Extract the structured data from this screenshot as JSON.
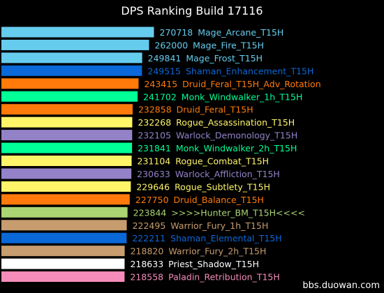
{
  "chart_data": {
    "type": "bar",
    "orientation": "horizontal",
    "title": "DPS Ranking Build 17116",
    "xlim": [
      0,
      270718
    ],
    "bars": [
      {
        "value": 270718,
        "value_label": "270718",
        "name": "Mage_Arcane_T15H",
        "color": "#66ccee",
        "text_color": "#66ccee"
      },
      {
        "value": 262000,
        "value_label": "262000",
        "name": "Mage_Fire_T15H",
        "color": "#66ccee",
        "text_color": "#66ccee"
      },
      {
        "value": 249841,
        "value_label": "249841",
        "name": "Mage_Frost_T15H",
        "color": "#66ccee",
        "text_color": "#66ccee"
      },
      {
        "value": 249515,
        "value_label": "249515",
        "name": "Shaman_Enhancement_T15H",
        "color": "#0a68d8",
        "text_color": "#0a68d8"
      },
      {
        "value": 243415,
        "value_label": "243415",
        "name": "Druid_Feral_T15H_Adv_Rotation",
        "color": "#ff7a0a",
        "text_color": "#ff7a0a"
      },
      {
        "value": 241702,
        "value_label": "241702",
        "name": "Monk_Windwalker_1h_T15H",
        "color": "#00ff96",
        "text_color": "#00ff96"
      },
      {
        "value": 232858,
        "value_label": "232858",
        "name": "Druid_Feral_T15H",
        "color": "#ff7a0a",
        "text_color": "#ff7a0a"
      },
      {
        "value": 232268,
        "value_label": "232268",
        "name": "Rogue_Assassination_T15H",
        "color": "#fff569",
        "text_color": "#fff569"
      },
      {
        "value": 232105,
        "value_label": "232105",
        "name": "Warlock_Demonology_T15H",
        "color": "#9482c9",
        "text_color": "#9482c9"
      },
      {
        "value": 231841,
        "value_label": "231841",
        "name": "Monk_Windwalker_2h_T15H",
        "color": "#00ff96",
        "text_color": "#00ff96"
      },
      {
        "value": 231104,
        "value_label": "231104",
        "name": "Rogue_Combat_T15H",
        "color": "#fff569",
        "text_color": "#fff569"
      },
      {
        "value": 230633,
        "value_label": "230633",
        "name": "Warlock_Affliction_T15H",
        "color": "#9482c9",
        "text_color": "#9482c9"
      },
      {
        "value": 229646,
        "value_label": "229646",
        "name": "Rogue_Subtlety_T15H",
        "color": "#fff569",
        "text_color": "#fff569"
      },
      {
        "value": 227750,
        "value_label": "227750",
        "name": "Druid_Balance_T15H",
        "color": "#ff7a0a",
        "text_color": "#ff7a0a"
      },
      {
        "value": 223844,
        "value_label": "223844",
        "name": ">>>>Hunter_BM_T15H<<<<",
        "color": "#abd473",
        "text_color": "#abd473"
      },
      {
        "value": 222495,
        "value_label": "222495",
        "name": "Warrior_Fury_1h_T15H",
        "color": "#c79c6e",
        "text_color": "#c79c6e"
      },
      {
        "value": 222211,
        "value_label": "222211",
        "name": "Shaman_Elemental_T15H",
        "color": "#0a68d8",
        "text_color": "#0a68d8"
      },
      {
        "value": 218820,
        "value_label": "218820",
        "name": "Warrior_Fury_2h_T15H",
        "color": "#c79c6e",
        "text_color": "#c79c6e"
      },
      {
        "value": 218633,
        "value_label": "218633",
        "name": "Priest_Shadow_T15H",
        "color": "#ffffff",
        "text_color": "#ffffff"
      },
      {
        "value": 218558,
        "value_label": "218558",
        "name": "Paladin_Retribution_T15H",
        "color": "#f58cba",
        "text_color": "#f58cba"
      }
    ],
    "legend": "none",
    "grid": false
  },
  "watermark": "bbs.duowan.com",
  "colors": {
    "background": "#000000",
    "title": "#ffffff"
  }
}
